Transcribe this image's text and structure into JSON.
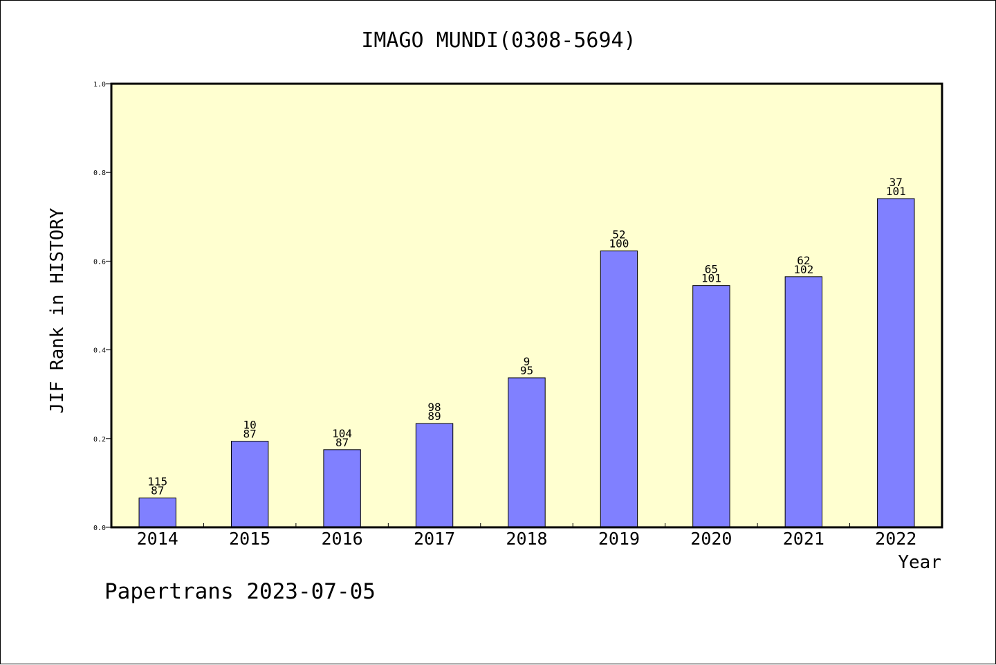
{
  "chart_data": {
    "type": "bar",
    "title": "IMAGO MUNDI(0308-5694)",
    "xlabel": "Year",
    "ylabel": "JIF Rank in HISTORY",
    "footer": "Papertrans 2023-07-05",
    "categories": [
      "2014",
      "2015",
      "2016",
      "2017",
      "2018",
      "2019",
      "2020",
      "2021",
      "2022"
    ],
    "values": [
      0.066,
      0.194,
      0.175,
      0.234,
      0.337,
      0.623,
      0.545,
      0.565,
      0.741
    ],
    "label_top": [
      "115",
      "10",
      "104",
      "98",
      "9",
      "52",
      "65",
      "62",
      "37"
    ],
    "label_bottom": [
      "87",
      "87",
      "87",
      "89",
      "95",
      "100",
      "101",
      "102",
      "101"
    ],
    "ylim": [
      0,
      1.0
    ],
    "yticks": [
      "0.0",
      "0.2",
      "0.4",
      "0.6",
      "0.8",
      "1.0"
    ],
    "grid": false,
    "colors": {
      "plot_background": "#ffffd0",
      "bar_fill": "#8080ff",
      "bar_stroke": "#000000"
    }
  }
}
